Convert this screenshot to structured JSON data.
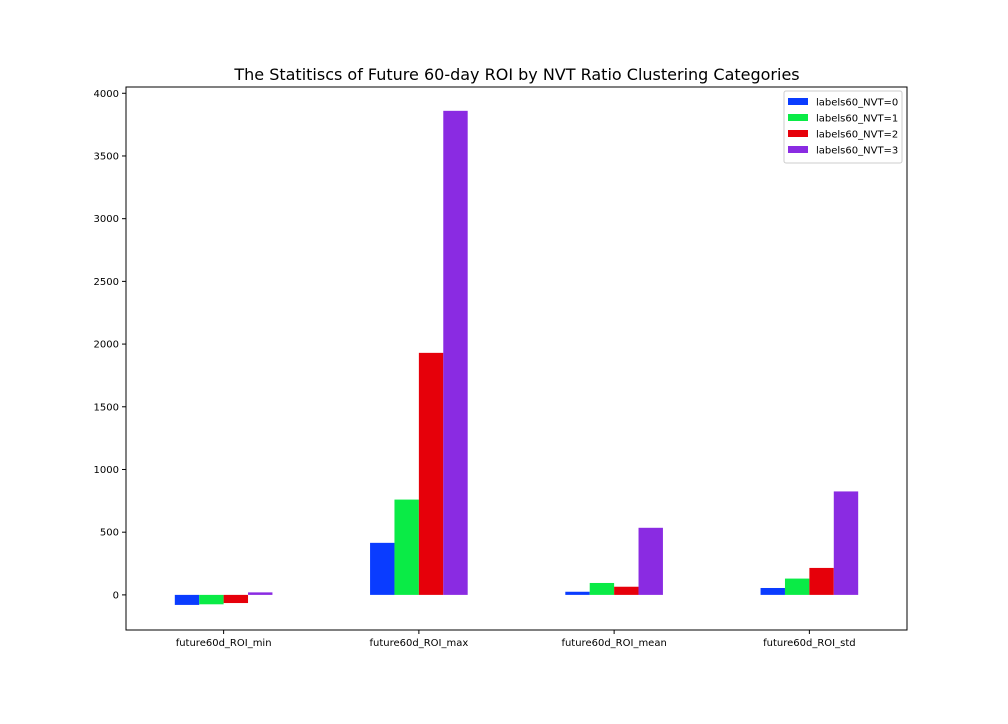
{
  "chart_data": {
    "type": "bar",
    "title": "The Statitiscs of Future 60-day ROI by NVT Ratio Clustering Categories",
    "xlabel": "",
    "ylabel": "",
    "categories": [
      "future60d_ROI_min",
      "future60d_ROI_max",
      "future60d_ROI_mean",
      "future60d_ROI_std"
    ],
    "series": [
      {
        "name": "labels60_NVT=0",
        "color": "#0a3cff",
        "values": [
          -80,
          415,
          25,
          55
        ]
      },
      {
        "name": "labels60_NVT=1",
        "color": "#0aeb46",
        "values": [
          -75,
          760,
          95,
          130
        ]
      },
      {
        "name": "labels60_NVT=2",
        "color": "#e6000a",
        "values": [
          -65,
          1930,
          65,
          215
        ]
      },
      {
        "name": "labels60_NVT=3",
        "color": "#8a2be2",
        "values": [
          20,
          3860,
          535,
          825
        ]
      }
    ],
    "ylim": [
      -280,
      4050
    ],
    "yticks": [
      0,
      500,
      1000,
      1500,
      2000,
      2500,
      3000,
      3500,
      4000
    ],
    "grid": false,
    "legend_position": "top-right"
  }
}
